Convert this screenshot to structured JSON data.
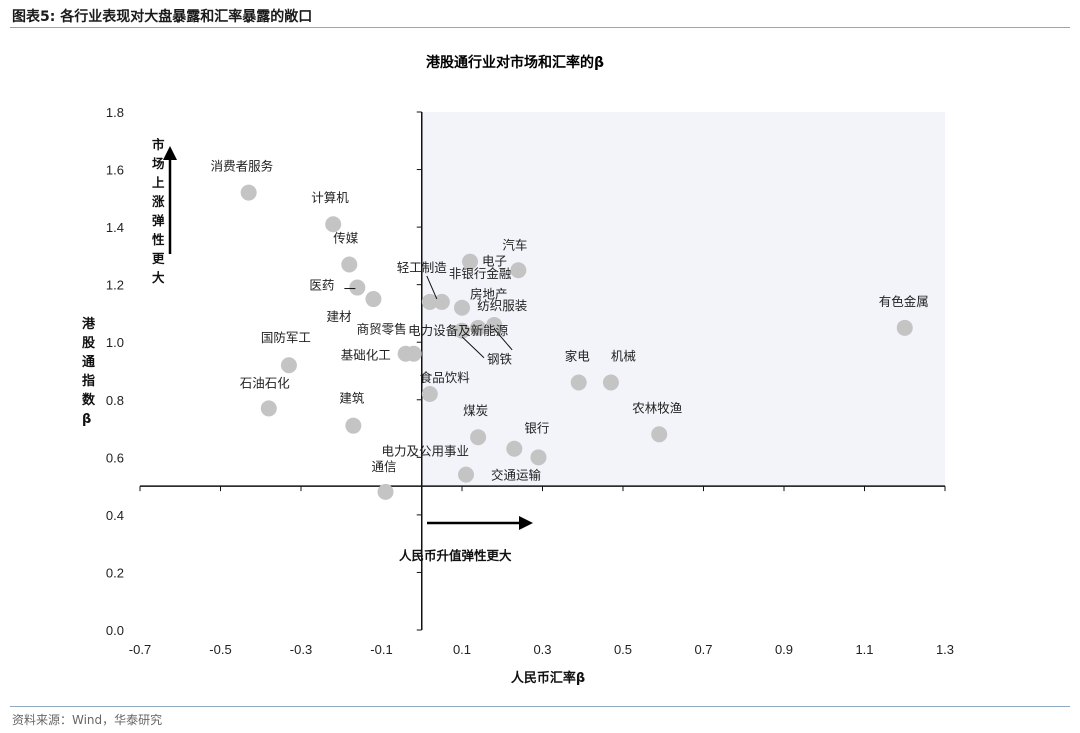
{
  "figure": {
    "title": "图表5:  各行业表现对大盘暴露和汇率暴露的敞口",
    "source": "资料来源：Wind，华泰研究"
  },
  "chart_data": {
    "type": "scatter",
    "title": "港股通行业对市场和汇率的β",
    "xlabel": "人民币汇率β",
    "ylabel": "港股通指数β",
    "xlim": [
      -0.7,
      1.3
    ],
    "ylim": [
      0.0,
      1.8
    ],
    "xticks": [
      "-0.7",
      "-0.5",
      "-0.3",
      "-0.1",
      "0.1",
      "0.3",
      "0.5",
      "0.7",
      "0.9",
      "1.1",
      "1.3"
    ],
    "yticks": [
      "0.0",
      "0.2",
      "0.4",
      "0.6",
      "0.8",
      "1.0",
      "1.2",
      "1.4",
      "1.6",
      "1.8"
    ],
    "grid": false,
    "marker_color": "#c4c4c4",
    "highlight_region_color": "#f2f4f9",
    "annotations": {
      "y_arrow": "市场上涨弹性更大",
      "x_arrow": "人民币升值弹性更大"
    },
    "points": [
      {
        "label": "消费者服务",
        "x": -0.43,
        "y": 1.52
      },
      {
        "label": "计算机",
        "x": -0.22,
        "y": 1.41
      },
      {
        "label": "传媒",
        "x": -0.18,
        "y": 1.27
      },
      {
        "label": "医药",
        "x": -0.16,
        "y": 1.19
      },
      {
        "label": "建材",
        "x": -0.12,
        "y": 1.15
      },
      {
        "label": "国防军工",
        "x": -0.33,
        "y": 0.92
      },
      {
        "label": "石油石化",
        "x": -0.38,
        "y": 0.77
      },
      {
        "label": "建筑",
        "x": -0.17,
        "y": 0.71
      },
      {
        "label": "通信",
        "x": -0.09,
        "y": 0.48
      },
      {
        "label": "商贸零售",
        "x": -0.04,
        "y": 0.96
      },
      {
        "label": "基础化工",
        "x": -0.02,
        "y": 0.96
      },
      {
        "label": "轻工制造",
        "x": 0.02,
        "y": 1.14
      },
      {
        "label": "非银行金融",
        "x": 0.05,
        "y": 1.14
      },
      {
        "label": "电子",
        "x": 0.12,
        "y": 1.28
      },
      {
        "label": "汽车",
        "x": 0.24,
        "y": 1.25
      },
      {
        "label": "房地产",
        "x": 0.1,
        "y": 1.12
      },
      {
        "label": "纺织服装",
        "x": 0.18,
        "y": 1.06
      },
      {
        "label": "钢铁",
        "x": 0.1,
        "y": 1.04
      },
      {
        "label": "电力设备及新能源",
        "x": 0.14,
        "y": 1.05
      },
      {
        "label": "食品饮料",
        "x": 0.02,
        "y": 0.82
      },
      {
        "label": "煤炭",
        "x": 0.14,
        "y": 0.67
      },
      {
        "label": "银行",
        "x": 0.23,
        "y": 0.63
      },
      {
        "label": "电力及公用事业",
        "x": 0.29,
        "y": 0.6
      },
      {
        "label": "交通运输",
        "x": 0.11,
        "y": 0.54
      },
      {
        "label": "家电",
        "x": 0.39,
        "y": 0.86
      },
      {
        "label": "机械",
        "x": 0.47,
        "y": 0.86
      },
      {
        "label": "农林牧渔",
        "x": 0.59,
        "y": 0.68
      },
      {
        "label": "有色金属",
        "x": 1.2,
        "y": 1.05
      }
    ]
  }
}
